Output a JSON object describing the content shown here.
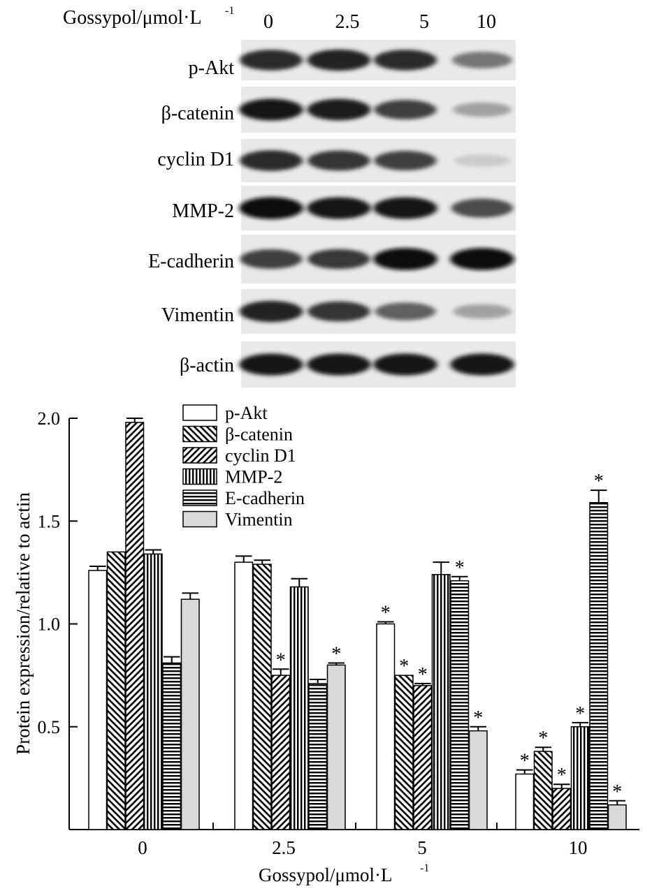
{
  "blot": {
    "header_label": "Gossypol/μmol·L",
    "header_exponent": "-1",
    "lanes": [
      "0",
      "2.5",
      "5",
      "10"
    ],
    "rows": [
      {
        "label": "p-Akt",
        "intensity": [
          0.85,
          0.9,
          0.85,
          0.5
        ]
      },
      {
        "label": "β-catenin",
        "intensity": [
          0.95,
          0.92,
          0.75,
          0.3
        ]
      },
      {
        "label": "cyclin D1",
        "intensity": [
          0.85,
          0.8,
          0.75,
          0.1
        ]
      },
      {
        "label": "MMP-2",
        "intensity": [
          0.98,
          0.95,
          0.95,
          0.7
        ]
      },
      {
        "label": "E-cadherin",
        "intensity": [
          0.75,
          0.78,
          0.98,
          0.98
        ]
      },
      {
        "label": "Vimentin",
        "intensity": [
          0.9,
          0.8,
          0.6,
          0.3
        ]
      },
      {
        "label": "β-actin",
        "intensity": [
          0.95,
          0.95,
          0.95,
          0.95
        ]
      }
    ]
  },
  "chart_data": {
    "type": "bar",
    "ylabel": "Protein expression/relative to actin",
    "xlabel": "Gossypol/μmol·L",
    "xlabel_exponent": "-1",
    "categories": [
      "0",
      "2.5",
      "5",
      "10"
    ],
    "ylim": [
      0,
      2.0
    ],
    "yticks": [
      0.5,
      1.0,
      1.5,
      2.0
    ],
    "ytick_labels": [
      "0.5",
      "1.0",
      "1.5",
      "2.0"
    ],
    "legend_position": "top-center",
    "significance_marker": "*",
    "series": [
      {
        "name": "p-Akt",
        "pattern": "white",
        "values": [
          1.26,
          1.3,
          1.0,
          0.27
        ],
        "errors": [
          0.02,
          0.03,
          0.01,
          0.02
        ],
        "significant": [
          false,
          false,
          true,
          true
        ]
      },
      {
        "name": "β-catenin",
        "pattern": "hatch-back",
        "values": [
          1.35,
          1.29,
          0.75,
          0.38
        ],
        "errors": [
          0.0,
          0.02,
          0.0,
          0.02
        ],
        "significant": [
          false,
          false,
          true,
          true
        ]
      },
      {
        "name": "cyclin D1",
        "pattern": "hatch-forward",
        "values": [
          1.98,
          0.75,
          0.7,
          0.2
        ],
        "errors": [
          0.02,
          0.03,
          0.01,
          0.02
        ],
        "significant": [
          false,
          true,
          true,
          true
        ]
      },
      {
        "name": "MMP-2",
        "pattern": "vertical",
        "values": [
          1.34,
          1.18,
          1.24,
          0.5
        ],
        "errors": [
          0.02,
          0.04,
          0.06,
          0.02
        ],
        "significant": [
          false,
          false,
          false,
          true
        ]
      },
      {
        "name": "E-cadherin",
        "pattern": "horizontal",
        "values": [
          0.81,
          0.71,
          1.21,
          1.59
        ],
        "errors": [
          0.03,
          0.02,
          0.02,
          0.06
        ],
        "significant": [
          false,
          false,
          true,
          true
        ]
      },
      {
        "name": "Vimentin",
        "pattern": "gray",
        "values": [
          1.12,
          0.8,
          0.48,
          0.12
        ],
        "errors": [
          0.03,
          0.01,
          0.02,
          0.02
        ],
        "significant": [
          false,
          true,
          true,
          true
        ]
      }
    ]
  }
}
